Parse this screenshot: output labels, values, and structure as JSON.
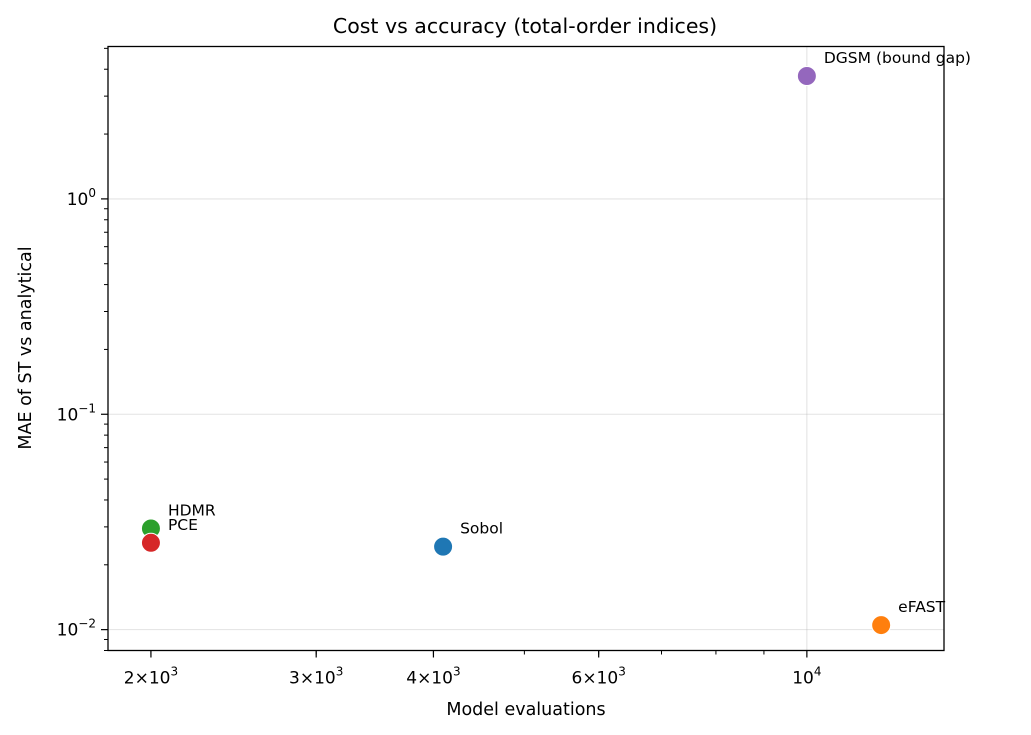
{
  "chart_data": {
    "type": "scatter",
    "title": "Cost vs accuracy (total-order indices)",
    "xlabel": "Model evaluations",
    "ylabel": "MAE of ST vs analytical",
    "xscale": "log",
    "yscale": "log",
    "xlim": [
      1800,
      14000
    ],
    "ylim": [
      0.008,
      5.1
    ],
    "grid": true,
    "x_ticks": [
      {
        "value": 2000,
        "base": "2",
        "exp": "3"
      },
      {
        "value": 3000,
        "base": "3",
        "exp": "3"
      },
      {
        "value": 4000,
        "base": "4",
        "exp": "3"
      },
      {
        "value": 6000,
        "base": "6",
        "exp": "3"
      },
      {
        "value": 10000,
        "base": "",
        "exp": "4"
      }
    ],
    "y_ticks": [
      {
        "value": 0.01,
        "exp": "−2"
      },
      {
        "value": 0.1,
        "exp": "−1"
      },
      {
        "value": 1,
        "exp": "0"
      }
    ],
    "points": [
      {
        "name": "Sobol",
        "x": 4096,
        "y": 0.0243,
        "color": "#1f77b4"
      },
      {
        "name": "eFAST",
        "x": 12000,
        "y": 0.0105,
        "color": "#ff7f0e"
      },
      {
        "name": "HDMR",
        "x": 2000,
        "y": 0.0295,
        "color": "#2ca02c"
      },
      {
        "name": "PCE",
        "x": 2000,
        "y": 0.0253,
        "color": "#d62728"
      },
      {
        "name": "DGSM (bound gap)",
        "x": 10000,
        "y": 3.72,
        "color": "#9467bd"
      }
    ]
  }
}
